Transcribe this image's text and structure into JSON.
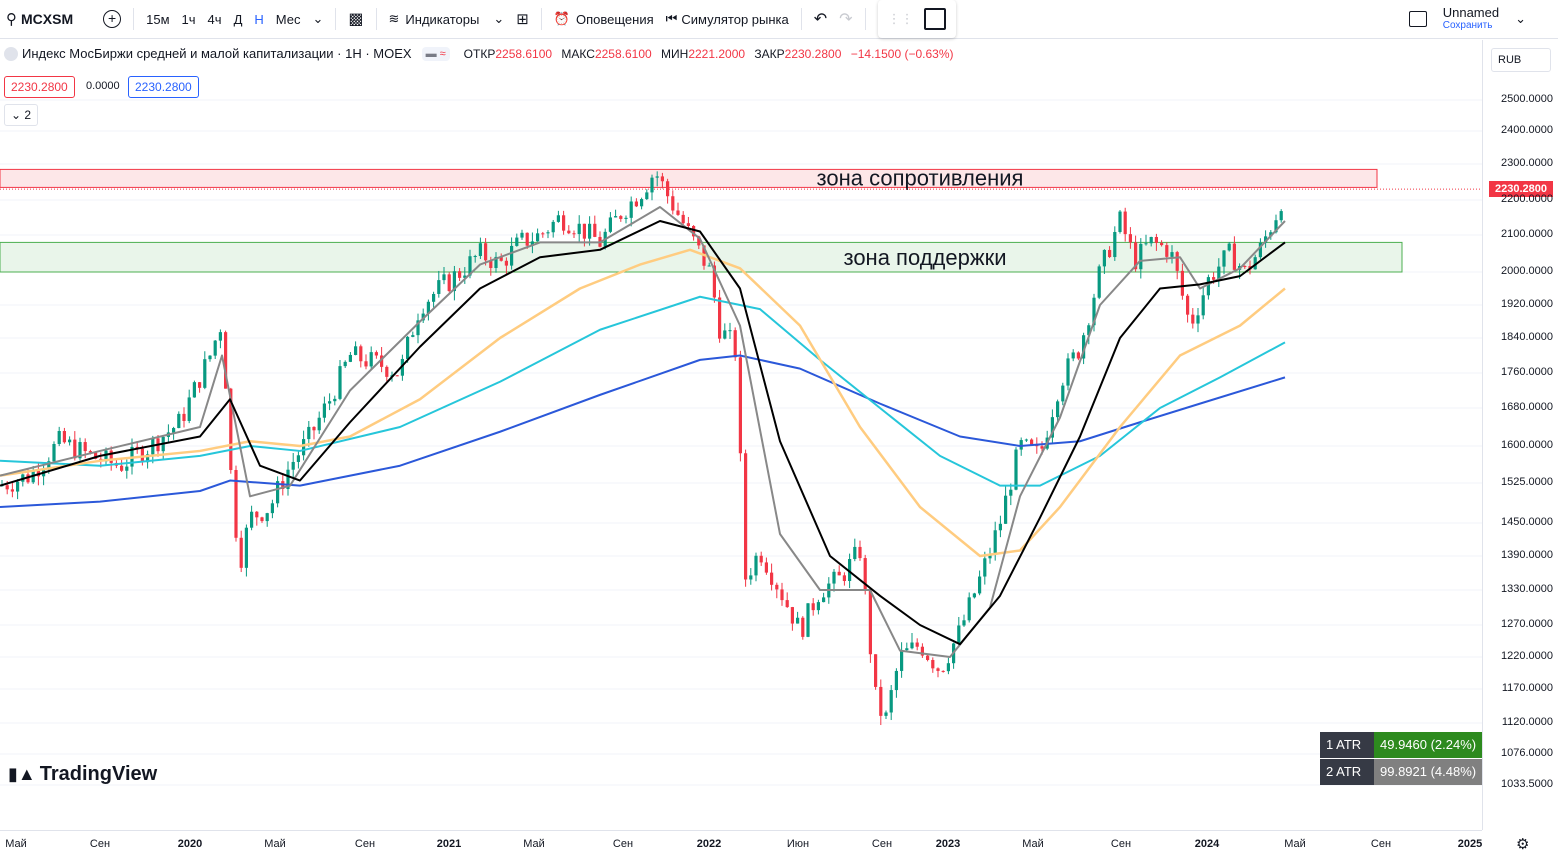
{
  "toolbar": {
    "symbol": "MCXSM",
    "intervals": [
      "15м",
      "1ч",
      "4ч",
      "Д",
      "Н",
      "Мес"
    ],
    "active_interval": "Н",
    "indicators": "Индикаторы",
    "alerts": "Оповещения",
    "simulator": "Симулятор рынка",
    "layout_name": "Unnamed",
    "save": "Сохранить"
  },
  "legend": {
    "title": "Индекс МосБиржи средней и малой капитализации · 1Н · MOEX",
    "open_label": "ОТКР",
    "open": "2258.6100",
    "high_label": "МАКС",
    "high": "2258.6100",
    "low_label": "МИН",
    "low": "2221.2000",
    "close_label": "ЗАКР",
    "close": "2230.2800",
    "change": "−14.1500 (−0.63%)",
    "bid": "2230.2800",
    "spread": "0.0000",
    "ask": "2230.2800",
    "collapsed_count": "2"
  },
  "currency": "RUB",
  "last_price": "2230.2800",
  "zones": {
    "resistance": "зона сопротивления",
    "support": "зона поддержки"
  },
  "price_ticks": [
    "2500.0000",
    "2400.0000",
    "2300.0000",
    "2200.0000",
    "2100.0000",
    "2000.0000",
    "1920.0000",
    "1840.0000",
    "1760.0000",
    "1680.0000",
    "1600.0000",
    "1525.0000",
    "1450.0000",
    "1390.0000",
    "1330.0000",
    "1270.0000",
    "1220.0000",
    "1170.0000",
    "1120.0000",
    "1076.0000",
    "1033.5000"
  ],
  "time_ticks": [
    {
      "label": "Май",
      "bold": false
    },
    {
      "label": "Сен",
      "bold": false
    },
    {
      "label": "2020",
      "bold": true
    },
    {
      "label": "Май",
      "bold": false
    },
    {
      "label": "Сен",
      "bold": false
    },
    {
      "label": "2021",
      "bold": true
    },
    {
      "label": "Май",
      "bold": false
    },
    {
      "label": "Сен",
      "bold": false
    },
    {
      "label": "2022",
      "bold": true
    },
    {
      "label": "Июн",
      "bold": false
    },
    {
      "label": "Сен",
      "bold": false
    },
    {
      "label": "2023",
      "bold": true
    },
    {
      "label": "Май",
      "bold": false
    },
    {
      "label": "Сен",
      "bold": false
    },
    {
      "label": "2024",
      "bold": true
    },
    {
      "label": "Май",
      "bold": false
    },
    {
      "label": "Сен",
      "bold": false
    },
    {
      "label": "2025",
      "bold": true
    }
  ],
  "atr": [
    {
      "name": "1 ATR",
      "value": "49.9460 (2.24%)",
      "color": "#2d8a1e"
    },
    {
      "name": "2 ATR",
      "value": "99.8921 (4.48%)",
      "color": "#808080"
    }
  ],
  "brand": "TradingView",
  "chart_data": {
    "type": "candlestick",
    "close_path": [
      [
        0,
        1520
      ],
      [
        30,
        1540
      ],
      [
        60,
        1610
      ],
      [
        90,
        1580
      ],
      [
        120,
        1560
      ],
      [
        150,
        1600
      ],
      [
        180,
        1650
      ],
      [
        210,
        1800
      ],
      [
        222,
        1880
      ],
      [
        232,
        1500
      ],
      [
        240,
        1380
      ],
      [
        250,
        1460
      ],
      [
        270,
        1480
      ],
      [
        290,
        1560
      ],
      [
        310,
        1620
      ],
      [
        330,
        1700
      ],
      [
        350,
        1800
      ],
      [
        380,
        1780
      ],
      [
        400,
        1760
      ],
      [
        420,
        1920
      ],
      [
        440,
        1960
      ],
      [
        460,
        2000
      ],
      [
        480,
        2050
      ],
      [
        500,
        2020
      ],
      [
        520,
        2080
      ],
      [
        540,
        2100
      ],
      [
        560,
        2150
      ],
      [
        580,
        2120
      ],
      [
        600,
        2080
      ],
      [
        620,
        2160
      ],
      [
        640,
        2220
      ],
      [
        655,
        2280
      ],
      [
        670,
        2200
      ],
      [
        690,
        2100
      ],
      [
        710,
        2000
      ],
      [
        720,
        1860
      ],
      [
        735,
        1820
      ],
      [
        745,
        1350
      ],
      [
        760,
        1400
      ],
      [
        780,
        1330
      ],
      [
        800,
        1260
      ],
      [
        820,
        1330
      ],
      [
        840,
        1350
      ],
      [
        860,
        1400
      ],
      [
        875,
        1160
      ],
      [
        885,
        1120
      ],
      [
        900,
        1220
      ],
      [
        920,
        1240
      ],
      [
        940,
        1200
      ],
      [
        960,
        1260
      ],
      [
        980,
        1350
      ],
      [
        1000,
        1450
      ],
      [
        1020,
        1600
      ],
      [
        1040,
        1580
      ],
      [
        1060,
        1740
      ],
      [
        1080,
        1820
      ],
      [
        1100,
        2000
      ],
      [
        1120,
        2140
      ],
      [
        1135,
        2030
      ],
      [
        1150,
        2080
      ],
      [
        1170,
        2060
      ],
      [
        1190,
        1870
      ],
      [
        1210,
        1990
      ],
      [
        1230,
        2050
      ],
      [
        1245,
        2000
      ],
      [
        1260,
        2060
      ],
      [
        1275,
        2150
      ],
      [
        1285,
        2230
      ]
    ],
    "ma_fast": [
      [
        0,
        1540
      ],
      [
        100,
        1590
      ],
      [
        200,
        1640
      ],
      [
        222,
        1800
      ],
      [
        250,
        1500
      ],
      [
        290,
        1520
      ],
      [
        350,
        1720
      ],
      [
        420,
        1880
      ],
      [
        480,
        2020
      ],
      [
        540,
        2080
      ],
      [
        600,
        2080
      ],
      [
        660,
        2180
      ],
      [
        700,
        2090
      ],
      [
        740,
        1870
      ],
      [
        780,
        1430
      ],
      [
        820,
        1330
      ],
      [
        870,
        1330
      ],
      [
        900,
        1230
      ],
      [
        950,
        1220
      ],
      [
        990,
        1300
      ],
      [
        1020,
        1500
      ],
      [
        1060,
        1660
      ],
      [
        1100,
        1920
      ],
      [
        1140,
        2030
      ],
      [
        1180,
        2040
      ],
      [
        1200,
        1960
      ],
      [
        1240,
        2010
      ],
      [
        1285,
        2140
      ]
    ],
    "ma_black": [
      [
        0,
        1520
      ],
      [
        100,
        1580
      ],
      [
        200,
        1620
      ],
      [
        230,
        1700
      ],
      [
        260,
        1560
      ],
      [
        300,
        1530
      ],
      [
        350,
        1650
      ],
      [
        420,
        1820
      ],
      [
        480,
        1960
      ],
      [
        540,
        2040
      ],
      [
        600,
        2060
      ],
      [
        660,
        2140
      ],
      [
        700,
        2110
      ],
      [
        740,
        1960
      ],
      [
        780,
        1610
      ],
      [
        830,
        1390
      ],
      [
        880,
        1320
      ],
      [
        920,
        1270
      ],
      [
        960,
        1240
      ],
      [
        1000,
        1320
      ],
      [
        1040,
        1460
      ],
      [
        1080,
        1620
      ],
      [
        1120,
        1840
      ],
      [
        1160,
        1960
      ],
      [
        1200,
        1970
      ],
      [
        1240,
        1990
      ],
      [
        1285,
        2080
      ]
    ],
    "ma_orange": [
      [
        0,
        1540
      ],
      [
        100,
        1570
      ],
      [
        200,
        1590
      ],
      [
        250,
        1610
      ],
      [
        300,
        1600
      ],
      [
        350,
        1620
      ],
      [
        420,
        1700
      ],
      [
        500,
        1840
      ],
      [
        580,
        1960
      ],
      [
        640,
        2020
      ],
      [
        690,
        2060
      ],
      [
        740,
        2010
      ],
      [
        800,
        1870
      ],
      [
        860,
        1640
      ],
      [
        920,
        1480
      ],
      [
        980,
        1390
      ],
      [
        1020,
        1400
      ],
      [
        1060,
        1480
      ],
      [
        1120,
        1640
      ],
      [
        1180,
        1800
      ],
      [
        1240,
        1870
      ],
      [
        1285,
        1960
      ]
    ],
    "ma_teal": [
      [
        0,
        1570
      ],
      [
        100,
        1560
      ],
      [
        200,
        1580
      ],
      [
        250,
        1600
      ],
      [
        300,
        1590
      ],
      [
        400,
        1640
      ],
      [
        500,
        1740
      ],
      [
        600,
        1860
      ],
      [
        700,
        1940
      ],
      [
        760,
        1910
      ],
      [
        820,
        1790
      ],
      [
        880,
        1680
      ],
      [
        940,
        1580
      ],
      [
        1000,
        1520
      ],
      [
        1040,
        1520
      ],
      [
        1100,
        1580
      ],
      [
        1160,
        1680
      ],
      [
        1220,
        1750
      ],
      [
        1285,
        1830
      ]
    ],
    "ma_blue": [
      [
        0,
        1480
      ],
      [
        100,
        1490
      ],
      [
        200,
        1510
      ],
      [
        230,
        1530
      ],
      [
        300,
        1520
      ],
      [
        400,
        1560
      ],
      [
        500,
        1630
      ],
      [
        600,
        1710
      ],
      [
        700,
        1790
      ],
      [
        740,
        1800
      ],
      [
        800,
        1770
      ],
      [
        880,
        1690
      ],
      [
        960,
        1620
      ],
      [
        1020,
        1600
      ],
      [
        1080,
        1610
      ],
      [
        1140,
        1650
      ],
      [
        1200,
        1690
      ],
      [
        1285,
        1750
      ]
    ]
  }
}
